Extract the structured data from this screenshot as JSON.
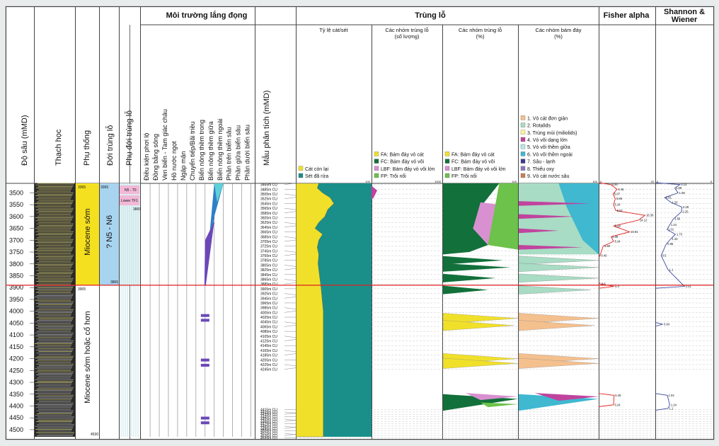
{
  "headers": {
    "depth": "Độ sâu (mMD)",
    "lithology": "Thạch học",
    "sub_series": "Phụ thống",
    "foram_zone": "Đới trùng lỗ",
    "foram_subzone": "Phụ đới trùng lỗ",
    "environment": "Môi trường lắng đọng",
    "sample": "Mẫu phân tích (mMD)",
    "foram": "Trùng lỗ",
    "fisher": "Fisher alpha",
    "shannon": "Shannon & Wiener"
  },
  "environment_columns": [
    "Điều kiện phơi lộ",
    "Đồng bằng sông",
    "Ven biển - Tam giác châu",
    "Hồ nước ngọt",
    "Ngập mặn",
    "Chuyển tiếp/Bãi triều",
    "Biển nông thềm trong",
    "Biển nông thềm giữa",
    "Biển nông thềm ngoài",
    "Phần trên biển sâu",
    "Phần giữa biển sâu",
    "Phần dưới biển sâu"
  ],
  "units": {
    "upper": "Miocene sớm",
    "lower": "Miocene sớm hoặc cổ hơn",
    "zone": "? N5 - N6",
    "subzone_top": "N5 - T0",
    "subzone_mid": "Lower TF1",
    "marks": {
      "a": "3365",
      "b": "3905",
      "c": "3865",
      "d": "4530",
      "e": "3365",
      "f": "3865",
      "g": "3365"
    }
  },
  "foram_panels": {
    "ratio": {
      "title": "Tỷ lệ cát/sét",
      "legend": [
        "Cát còn lại",
        "Sét đã rửa"
      ],
      "colors": [
        "#f1e02a",
        "#1a8f8a"
      ],
      "axis_max": "100"
    },
    "groups_count": {
      "title": "Các nhóm trùng lỗ (số lượng)",
      "legend": [
        "FA: Bám đáy vỏ cát",
        "FC: Bám đáy vỏ vôi",
        "LBF: Bám đáy vỏ vôi lớn",
        "FP: Trôi nổi"
      ],
      "colors": [
        "#f1e02a",
        "#12703a",
        "#d890d0",
        "#6cc24a"
      ],
      "axis_max": "1000"
    },
    "groups_pct": {
      "title": "Các nhóm trùng lỗ (%)",
      "legend": [
        "FA: Bám đáy vỏ cát",
        "FC: Bám đáy vỏ vôi",
        "LBF: Bám đáy vỏ vôi lớn",
        "FP: Trôi nổi"
      ],
      "axis_max": "100"
    },
    "benthic": {
      "title": "Các nhóm bám đáy (%)",
      "legend": [
        "1. Vỏ cát đơn giản",
        "2. Rotalids",
        "3. Trùng mùi (miliolids)",
        "4. Vỏ vôi dạng lớn",
        "5. Vỏ vôi thềm giữa",
        "6. Vỏ vôi thềm ngoài",
        "7. Sâu - lạnh",
        "8. Thiếu oxy",
        "9. Vỏ cát  nước sâu"
      ],
      "colors": [
        "#f4c08e",
        "#a8dcc4",
        "#fff3a0",
        "#c0449e",
        "#b8e8e8",
        "#3fb8d0",
        "#3c3a8c",
        "#8a78c0",
        "#c9805a"
      ],
      "axis_max": "100"
    }
  },
  "fisher_axis": {
    "min": "0",
    "max": "20"
  },
  "shannon_axis": {
    "min": "0",
    "max": "5"
  },
  "colors": {
    "boundary": "#e02020",
    "fisher_line": "#e02020",
    "shannon_line": "#3a4aa0",
    "env_fill": "#6a48b8",
    "env_fill2": "#2e7fc8",
    "env_top": "#5fd0d8",
    "zone": "#a8d4f0",
    "series": "#f5e020"
  },
  "chart_data": {
    "type": "line",
    "depth_axis": {
      "label": "Độ sâu (mMD)",
      "min": 3460,
      "max": 4530,
      "ticks": [
        3500,
        3550,
        3600,
        3650,
        3700,
        3750,
        3800,
        3850,
        3900,
        3950,
        4000,
        4050,
        4100,
        4150,
        4200,
        4250,
        4300,
        4350,
        4400,
        4450,
        4500
      ]
    },
    "boundary_depth": 3890,
    "samples": [
      3465,
      3485,
      3505,
      3525,
      3545,
      3565,
      3585,
      3605,
      3625,
      3645,
      3665,
      3685,
      3705,
      3725,
      3745,
      3765,
      3785,
      3805,
      3825,
      3845,
      3865,
      3885,
      3905,
      3925,
      3945,
      3965,
      3985,
      4005,
      4025,
      4045,
      4065,
      4085,
      4105,
      4125,
      4145,
      4165,
      4185,
      4205,
      4225,
      4245,
      4415,
      4425,
      4435,
      4445,
      4455,
      4465,
      4475,
      4485,
      4495,
      4505,
      4515,
      4525,
      4535
    ],
    "sample_suffix": "m CU",
    "fisher": [
      {
        "depth": 3465,
        "value": 4.26
      },
      {
        "depth": 3485,
        "value": 6.46
      },
      {
        "depth": 3505,
        "value": 5.07
      },
      {
        "depth": 3525,
        "value": 5.86
      },
      {
        "depth": 3550,
        "value": 5.24
      },
      {
        "depth": 3575,
        "value": 6.02
      },
      {
        "depth": 3595,
        "value": 16.36
      },
      {
        "depth": 3615,
        "value": 14.12
      },
      {
        "depth": 3640,
        "value": 5.29
      },
      {
        "depth": 3665,
        "value": 10.91
      },
      {
        "depth": 3685,
        "value": 4.39
      },
      {
        "depth": 3705,
        "value": 5.24
      },
      {
        "depth": 3725,
        "value": 1.59
      },
      {
        "depth": 3765,
        "value": 0.43
      },
      {
        "depth": 3885,
        "value": 0.6
      },
      {
        "depth": 3895,
        "value": 5.4
      },
      {
        "depth": 4355,
        "value": 5.45
      },
      {
        "depth": 4395,
        "value": 5.24
      }
    ],
    "shannon": [
      {
        "depth": 3465,
        "value": 2.12
      },
      {
        "depth": 3480,
        "value": 1.68
      },
      {
        "depth": 3500,
        "value": 1.96
      },
      {
        "depth": 3520,
        "value": 0.81
      },
      {
        "depth": 3540,
        "value": 1.33
      },
      {
        "depth": 3560,
        "value": 2.28
      },
      {
        "depth": 3580,
        "value": 2.25
      },
      {
        "depth": 3610,
        "value": 1.56
      },
      {
        "depth": 3635,
        "value": 1.24
      },
      {
        "depth": 3655,
        "value": 1.01
      },
      {
        "depth": 3675,
        "value": 1.73
      },
      {
        "depth": 3695,
        "value": 1.33
      },
      {
        "depth": 3715,
        "value": 0.95
      },
      {
        "depth": 3765,
        "value": 0.5
      },
      {
        "depth": 3825,
        "value": 1.1
      },
      {
        "depth": 3895,
        "value": 2.51
      },
      {
        "depth": 4055,
        "value": 0.64
      },
      {
        "depth": 4355,
        "value": 1.04
      },
      {
        "depth": 4395,
        "value": 1.24
      },
      {
        "depth": 4410,
        "value": 1.1
      }
    ],
    "env_bars": [
      4012,
      4032,
      4200,
      4222,
      4445,
      4465
    ]
  }
}
